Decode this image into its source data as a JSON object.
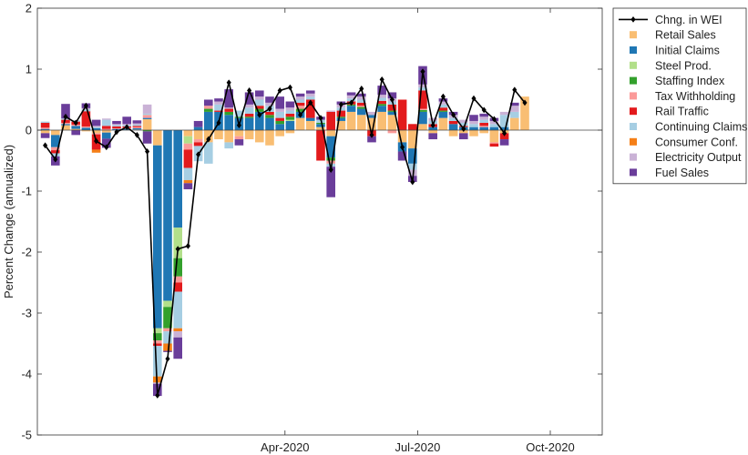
{
  "chart_data": {
    "type": "bar",
    "subtype": "stacked-bar-with-line",
    "ylabel": "Percent Change (annualized)",
    "ylim": [
      -5,
      2
    ],
    "yticks": [
      "2",
      "1",
      "0",
      "-1",
      "-2",
      "-3",
      "-4",
      "-5"
    ],
    "xticks": [
      {
        "label": "Apr-2020",
        "week": 24
      },
      {
        "label": "Jul-2020",
        "week": 37
      },
      {
        "label": "Oct-2020",
        "week": 50
      }
    ],
    "legend_position": "outside-top-right",
    "line_series": {
      "name": "Chng. in WEI",
      "color": "#000000",
      "values": [
        -0.25,
        -0.48,
        0.22,
        0.12,
        0.4,
        -0.18,
        -0.28,
        -0.03,
        0.05,
        -0.08,
        -0.35,
        -4.35,
        -3.75,
        -1.95,
        -1.9,
        -0.4,
        -0.15,
        0.12,
        0.78,
        0.08,
        0.65,
        0.25,
        0.35,
        0.65,
        0.7,
        0.25,
        0.45,
        0.2,
        -0.65,
        0.42,
        0.45,
        0.68,
        -0.08,
        0.83,
        0.5,
        -0.28,
        -0.85,
        0.96,
        0.08,
        0.55,
        0.25,
        0.02,
        0.52,
        0.33,
        0.18,
        -0.05,
        0.66,
        0.45
      ]
    },
    "series": [
      {
        "name": "Retail Sales",
        "color": "#F9BE73",
        "values": [
          -0.05,
          -0.08,
          0.08,
          0.02,
          -0.02,
          -0.05,
          -0.04,
          0.0,
          0.0,
          0.01,
          0.18,
          -0.25,
          0.0,
          0.0,
          -0.1,
          -0.15,
          -0.2,
          -0.15,
          -0.2,
          -0.1,
          -0.15,
          -0.2,
          -0.25,
          -0.1,
          -0.05,
          0.2,
          0.15,
          0.05,
          -0.1,
          0.15,
          0.3,
          0.25,
          0.2,
          0.3,
          0.25,
          -0.2,
          -0.3,
          0.1,
          -0.05,
          0.2,
          -0.1,
          -0.05,
          -0.1,
          -0.05,
          -0.2,
          -0.05,
          0.2,
          0.55
        ]
      },
      {
        "name": "Initial Claims",
        "color": "#1F77B4",
        "values": [
          0.02,
          -0.2,
          0.02,
          0.05,
          0.04,
          0.03,
          -0.1,
          0.02,
          0.02,
          0.02,
          0.02,
          -3.0,
          -2.8,
          -1.6,
          0.0,
          0.05,
          0.3,
          0.3,
          0.25,
          0.2,
          0.2,
          0.3,
          0.2,
          0.1,
          0.15,
          0.1,
          0.05,
          0.05,
          -0.35,
          0.05,
          0.1,
          0.1,
          0.05,
          0.1,
          0.05,
          -0.15,
          -0.25,
          0.2,
          0.05,
          0.1,
          0.1,
          0.05,
          0.05,
          0.05,
          0.05,
          0.05,
          0.0,
          0.0
        ]
      },
      {
        "name": "Steel Prod.",
        "color": "#B2DF8A",
        "values": [
          0.0,
          0.0,
          0.0,
          0.0,
          0.0,
          0.0,
          0.0,
          0.0,
          0.0,
          0.0,
          0.0,
          -0.08,
          -0.1,
          -0.5,
          -0.12,
          0.0,
          0.0,
          0.0,
          0.0,
          0.0,
          0.0,
          0.0,
          0.0,
          0.0,
          0.02,
          0.0,
          0.0,
          0.0,
          0.0,
          0.0,
          0.0,
          0.0,
          0.0,
          0.0,
          0.0,
          0.0,
          0.0,
          0.0,
          0.0,
          0.0,
          0.0,
          0.0,
          0.0,
          0.0,
          0.0,
          0.0,
          0.0,
          0.0
        ]
      },
      {
        "name": "Staffing Index",
        "color": "#33A02C",
        "values": [
          0.0,
          0.0,
          0.0,
          0.0,
          0.0,
          0.0,
          0.0,
          0.0,
          0.0,
          0.0,
          -0.02,
          -0.12,
          -0.35,
          -0.3,
          0.0,
          0.0,
          0.05,
          0.0,
          0.05,
          0.02,
          0.02,
          0.05,
          0.05,
          0.05,
          0.05,
          0.05,
          0.0,
          0.02,
          -0.05,
          0.02,
          0.02,
          0.03,
          0.0,
          0.03,
          0.02,
          0.0,
          0.0,
          0.03,
          0.0,
          0.02,
          0.0,
          0.0,
          0.0,
          0.0,
          0.0,
          0.0,
          0.0,
          0.0
        ]
      },
      {
        "name": "Tax Withholding",
        "color": "#FB9A99",
        "values": [
          0.02,
          -0.05,
          0.02,
          0.02,
          0.02,
          -0.02,
          0.02,
          0.01,
          0.02,
          0.02,
          0.05,
          -0.05,
          -0.05,
          -0.1,
          -0.1,
          -0.05,
          0.05,
          0.0,
          0.0,
          -0.05,
          0.0,
          0.0,
          0.0,
          0.0,
          0.0,
          0.05,
          0.0,
          0.0,
          -0.05,
          0.0,
          0.0,
          0.02,
          0.0,
          0.0,
          -0.05,
          0.0,
          0.0,
          0.02,
          0.0,
          0.0,
          0.0,
          0.0,
          0.0,
          0.02,
          -0.02,
          0.0,
          0.0,
          0.0
        ]
      },
      {
        "name": "Rail Traffic",
        "color": "#E31A1C",
        "values": [
          0.08,
          -0.05,
          0.05,
          0.05,
          0.25,
          -0.25,
          0.05,
          0.03,
          0.02,
          0.02,
          0.0,
          -0.04,
          0.0,
          -0.15,
          -0.3,
          -0.06,
          0.0,
          0.02,
          0.05,
          0.0,
          0.05,
          0.05,
          0.05,
          0.05,
          0.05,
          0.05,
          0.3,
          -0.5,
          0.3,
          0.1,
          0.05,
          0.05,
          -0.1,
          0.05,
          0.1,
          0.5,
          0.1,
          0.3,
          0.05,
          0.05,
          0.05,
          0.02,
          0.0,
          0.05,
          -0.05,
          -0.1,
          0.0,
          0.0
        ]
      },
      {
        "name": "Continuing Claims",
        "color": "#A6CEE3",
        "values": [
          0.02,
          -0.05,
          0.02,
          0.02,
          0.03,
          0.02,
          0.1,
          0.02,
          0.02,
          0.02,
          0.02,
          -0.5,
          -0.2,
          -0.6,
          -0.2,
          -0.25,
          -0.35,
          0.1,
          -0.1,
          0.1,
          0.1,
          0.1,
          0.1,
          0.1,
          0.05,
          0.05,
          0.05,
          0.05,
          -0.05,
          0.05,
          0.05,
          0.05,
          0.0,
          0.05,
          0.05,
          0.0,
          -0.1,
          0.05,
          0.05,
          0.05,
          0.05,
          0.05,
          0.05,
          0.05,
          0.05,
          0.2,
          0.1,
          0.0
        ]
      },
      {
        "name": "Consumer Conf.",
        "color": "#F57F17",
        "values": [
          0.0,
          0.0,
          0.0,
          0.0,
          0.0,
          -0.05,
          0.0,
          0.0,
          0.0,
          0.0,
          0.0,
          -0.1,
          -0.12,
          -0.05,
          -0.05,
          0.0,
          0.0,
          0.0,
          0.0,
          0.0,
          0.0,
          0.0,
          0.0,
          0.0,
          0.0,
          0.0,
          0.0,
          0.0,
          0.0,
          0.0,
          0.0,
          0.0,
          0.0,
          0.0,
          0.0,
          0.0,
          0.0,
          0.0,
          0.0,
          0.0,
          0.0,
          0.0,
          0.0,
          0.0,
          0.0,
          0.0,
          0.0,
          0.0
        ]
      },
      {
        "name": "Electricity Output",
        "color": "#CAB2D6",
        "values": [
          0.0,
          0.0,
          0.0,
          0.0,
          0.02,
          0.02,
          0.02,
          0.02,
          0.02,
          0.02,
          0.15,
          -0.02,
          0.0,
          -0.1,
          0.0,
          0.0,
          0.0,
          0.05,
          0.02,
          0.0,
          0.05,
          0.05,
          0.05,
          0.05,
          0.05,
          0.05,
          0.05,
          0.0,
          0.02,
          0.05,
          0.05,
          0.05,
          0.05,
          0.05,
          0.05,
          0.0,
          -0.1,
          0.05,
          0.05,
          0.05,
          0.05,
          0.05,
          0.05,
          0.05,
          0.05,
          0.05,
          0.1,
          0.0
        ]
      },
      {
        "name": "Fuel Sales",
        "color": "#6A3D9A",
        "values": [
          -0.08,
          -0.15,
          0.24,
          -0.08,
          0.08,
          0.1,
          -0.15,
          0.05,
          0.12,
          0.05,
          -0.2,
          -0.2,
          -0.02,
          -0.35,
          -0.1,
          0.1,
          0.1,
          0.05,
          0.3,
          -0.1,
          0.2,
          0.1,
          0.1,
          0.2,
          0.1,
          0.05,
          0.05,
          0.05,
          -0.5,
          0.05,
          0.05,
          0.05,
          -0.1,
          0.15,
          0.1,
          -0.15,
          -0.1,
          0.3,
          -0.1,
          0.05,
          0.05,
          -0.1,
          0.1,
          0.05,
          0.05,
          -0.1,
          0.05,
          0.0
        ]
      }
    ]
  }
}
